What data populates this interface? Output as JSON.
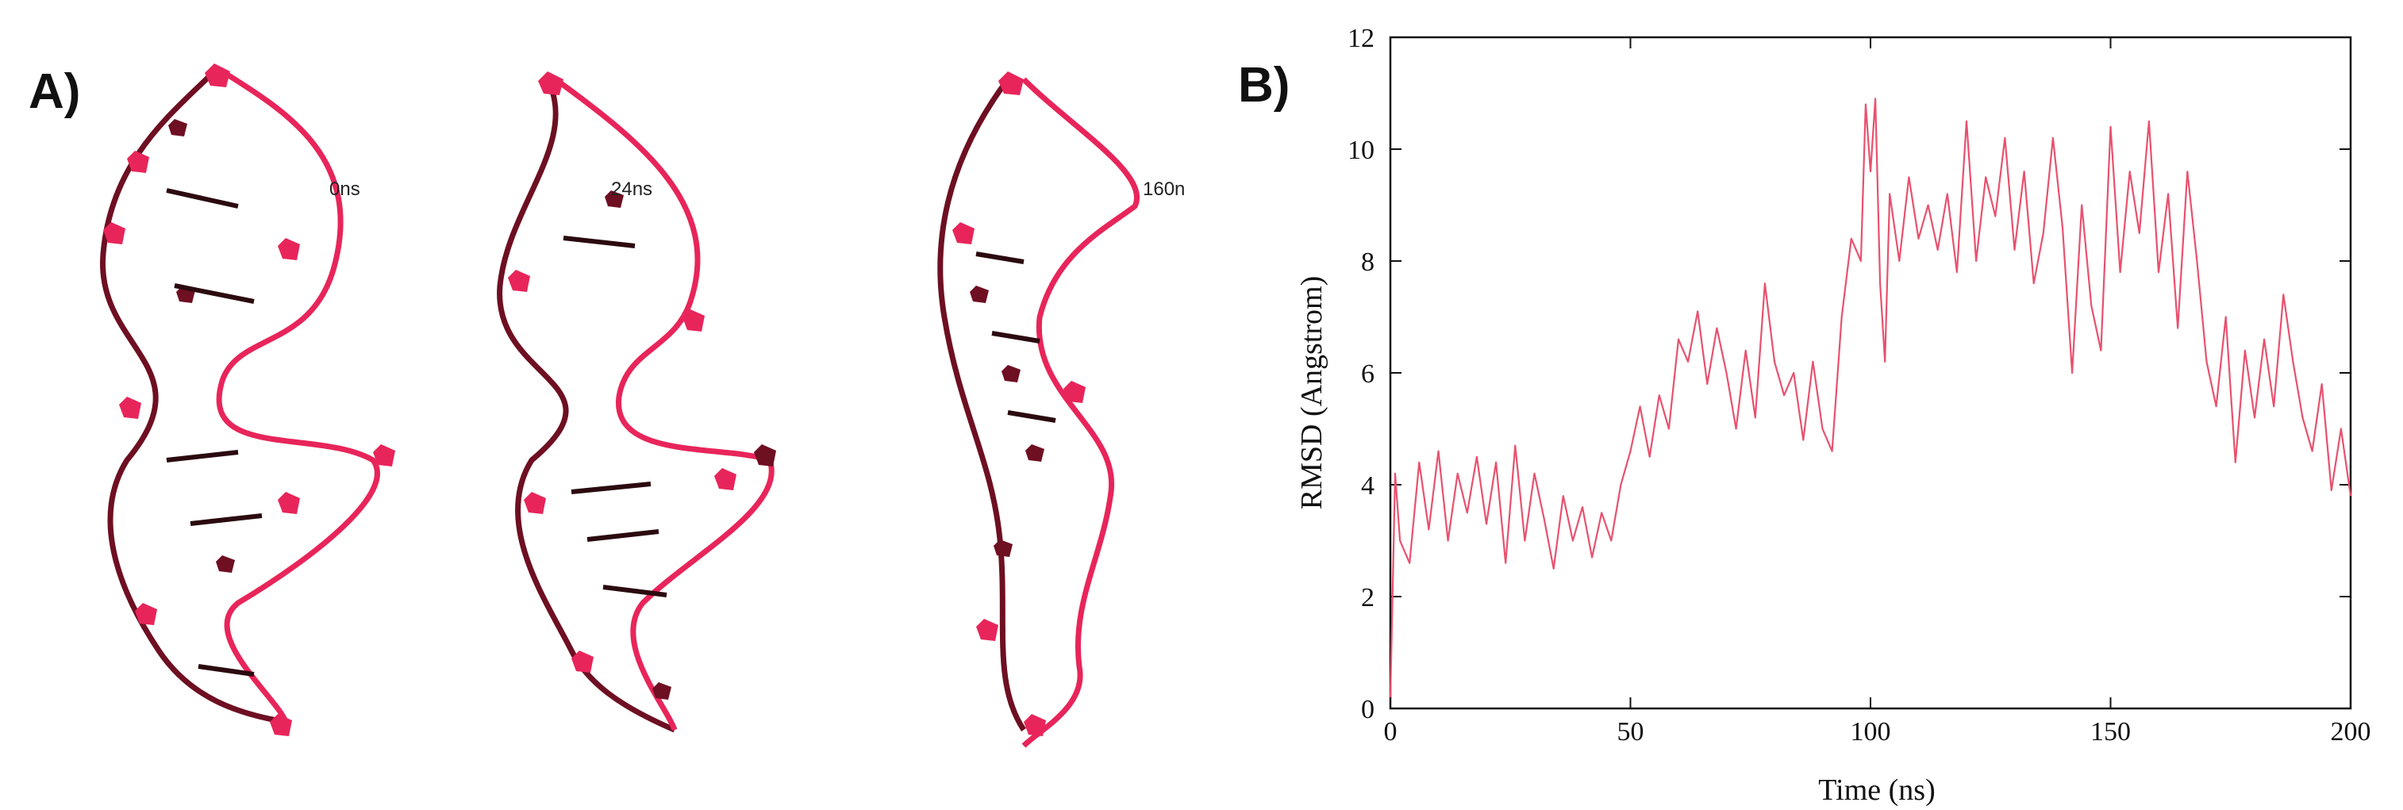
{
  "panel_a": {
    "label": "A)",
    "structures": [
      {
        "time_label": "0ns"
      },
      {
        "time_label": "24ns"
      },
      {
        "time_label": "160n"
      }
    ],
    "colors": {
      "backbone": "#e8255a",
      "dark": "#6e0f22",
      "base_dark": "#2b0a10"
    }
  },
  "panel_b": {
    "label": "B)",
    "chart_data": {
      "type": "line",
      "title": "",
      "xlabel": "Time (ns)",
      "ylabel": "RMSD (Angstrom)",
      "xlim": [
        0,
        200
      ],
      "ylim": [
        0,
        12
      ],
      "xticks": [
        0,
        50,
        100,
        150,
        200
      ],
      "yticks": [
        0,
        2,
        4,
        6,
        8,
        10,
        12
      ],
      "line_color": "#e8516e",
      "series": [
        {
          "x": [
            0,
            1,
            2,
            4,
            6,
            8,
            10,
            12,
            14,
            16,
            18,
            20,
            22,
            24,
            26,
            28,
            30,
            32,
            34,
            36,
            38,
            40,
            42,
            44,
            46,
            48,
            50,
            52,
            54,
            56,
            58,
            60,
            62,
            64,
            66,
            68,
            70,
            72,
            74,
            76,
            78,
            80,
            82,
            84,
            86,
            88,
            90,
            92,
            94,
            96,
            98,
            99,
            100,
            101,
            102,
            103,
            104,
            106,
            108,
            110,
            112,
            114,
            116,
            118,
            120,
            122,
            124,
            126,
            128,
            130,
            132,
            134,
            136,
            138,
            140,
            142,
            144,
            146,
            148,
            150,
            152,
            154,
            156,
            158,
            160,
            162,
            164,
            166,
            168,
            170,
            172,
            174,
            176,
            178,
            180,
            182,
            184,
            186,
            188,
            190,
            192,
            194,
            196,
            198,
            200
          ],
          "y": [
            0.2,
            4.2,
            3.0,
            2.6,
            4.4,
            3.2,
            4.6,
            3.0,
            4.2,
            3.5,
            4.5,
            3.3,
            4.4,
            2.6,
            4.7,
            3.0,
            4.2,
            3.4,
            2.5,
            3.8,
            3.0,
            3.6,
            2.7,
            3.5,
            3.0,
            4.0,
            4.6,
            5.4,
            4.5,
            5.6,
            5.0,
            6.6,
            6.2,
            7.1,
            5.8,
            6.8,
            6.0,
            5.0,
            6.4,
            5.2,
            7.6,
            6.2,
            5.6,
            6.0,
            4.8,
            6.2,
            5.0,
            4.6,
            7.0,
            8.4,
            8.0,
            10.8,
            9.6,
            10.9,
            7.6,
            6.2,
            9.2,
            8.0,
            9.5,
            8.4,
            9.0,
            8.2,
            9.2,
            7.8,
            10.5,
            8.0,
            9.5,
            8.8,
            10.2,
            8.2,
            9.6,
            7.6,
            8.5,
            10.2,
            8.6,
            6.0,
            9.0,
            7.2,
            6.4,
            10.4,
            7.8,
            9.6,
            8.5,
            10.5,
            7.8,
            9.2,
            6.8,
            9.6,
            8.0,
            6.2,
            5.4,
            7.0,
            4.4,
            6.4,
            5.2,
            6.6,
            5.4,
            7.4,
            6.2,
            5.2,
            4.6,
            5.8,
            3.9,
            5.0,
            3.8
          ]
        }
      ]
    }
  }
}
